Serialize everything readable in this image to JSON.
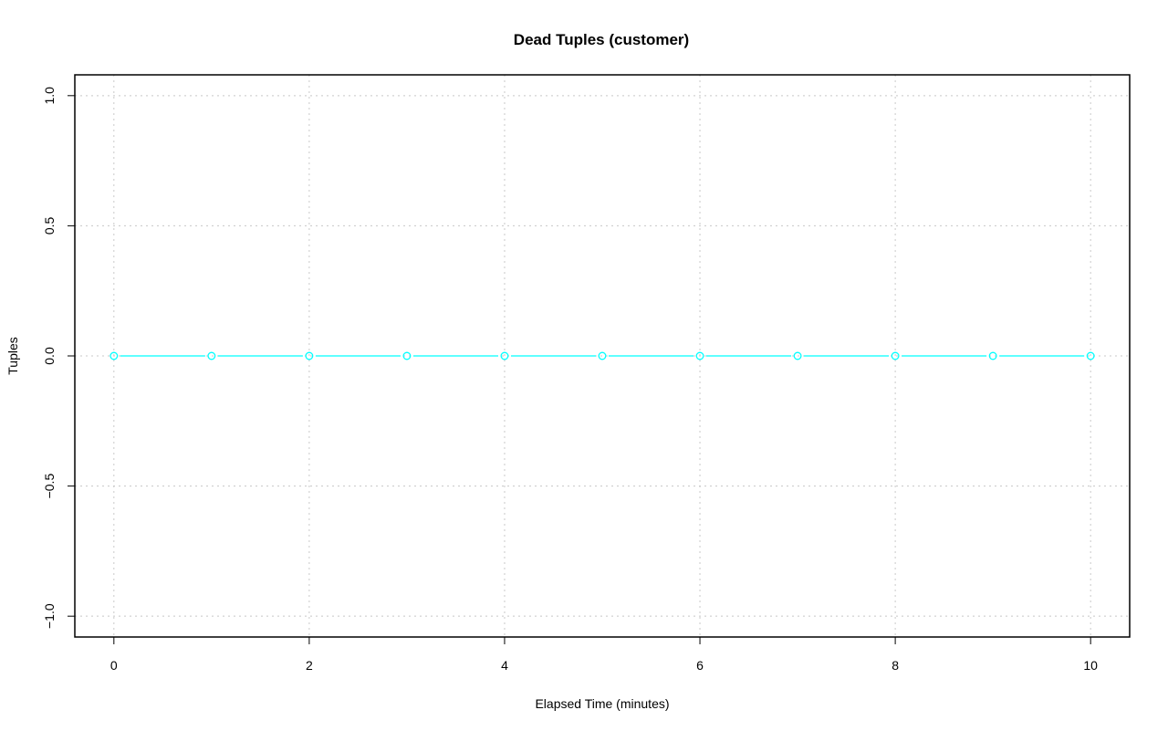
{
  "chart_data": {
    "type": "line",
    "title": "Dead Tuples (customer)",
    "xlabel": "Elapsed Time (minutes)",
    "ylabel": "Tuples",
    "xlim": [
      -0.4,
      10.4
    ],
    "ylim": [
      -1.08,
      1.08
    ],
    "xticks": [
      0,
      2,
      4,
      6,
      8,
      10
    ],
    "yticks": [
      -1.0,
      -0.5,
      0.0,
      0.5,
      1.0
    ],
    "xtick_labels": [
      "0",
      "2",
      "4",
      "6",
      "8",
      "10"
    ],
    "ytick_labels": [
      "−1.0",
      "−0.5",
      "0.0",
      "0.5",
      "1.0"
    ],
    "grid": true,
    "series": [
      {
        "x": [
          0,
          1,
          2,
          3,
          4,
          5,
          6,
          7,
          8,
          9,
          10
        ],
        "y": [
          0,
          0,
          0,
          0,
          0,
          0,
          0,
          0,
          0,
          0,
          0
        ],
        "color": "#00FFFF",
        "marker": "open-circle"
      }
    ]
  }
}
